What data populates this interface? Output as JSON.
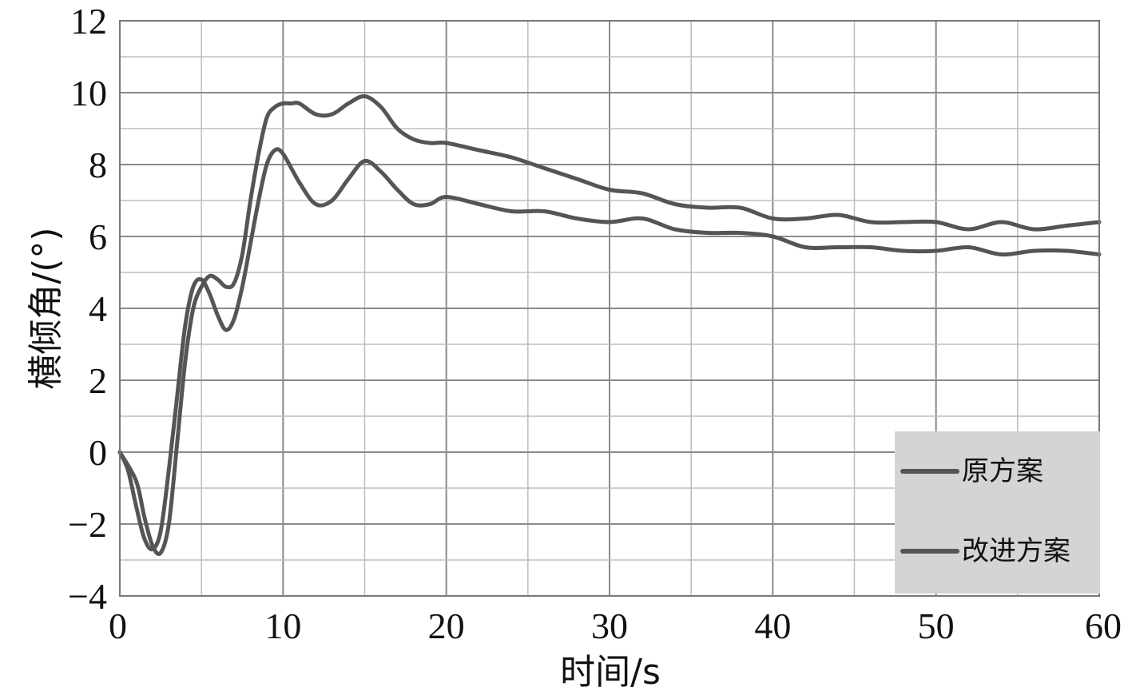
{
  "chart_data": {
    "type": "line",
    "title": "",
    "xlabel": "时间/s",
    "ylabel": "横倾角/(°)",
    "xlim": [
      0,
      60
    ],
    "ylim": [
      -4,
      12
    ],
    "x_ticks": [
      0,
      10,
      20,
      30,
      40,
      50,
      60
    ],
    "y_ticks": [
      -4,
      -2,
      0,
      2,
      4,
      6,
      8,
      10,
      12
    ],
    "y_tick_labels": [
      "−4",
      "−2",
      "0",
      "2",
      "4",
      "6",
      "8",
      "10",
      "12"
    ],
    "grid": true,
    "legend_position": "bottom-right",
    "line_color": "#555555",
    "series": [
      {
        "name": "原方案",
        "x": [
          0,
          1,
          1.5,
          2,
          2.5,
          3,
          3.5,
          4,
          4.5,
          5,
          5.5,
          6,
          6.5,
          7,
          7.5,
          8,
          8.5,
          9,
          9.5,
          10,
          10.5,
          11,
          12,
          13,
          14,
          15,
          16,
          17,
          18,
          19,
          20,
          22,
          24,
          26,
          28,
          30,
          32,
          34,
          36,
          38,
          40,
          42,
          44,
          46,
          48,
          50,
          52,
          54,
          56,
          58,
          60
        ],
        "y": [
          0,
          -0.8,
          -1.8,
          -2.6,
          -2.8,
          -2.0,
          0.2,
          2.5,
          4.0,
          4.6,
          4.9,
          4.8,
          4.6,
          4.7,
          5.5,
          7.0,
          8.3,
          9.3,
          9.6,
          9.7,
          9.7,
          9.7,
          9.4,
          9.4,
          9.7,
          9.9,
          9.6,
          9.0,
          8.7,
          8.6,
          8.6,
          8.4,
          8.2,
          7.9,
          7.6,
          7.3,
          7.2,
          6.9,
          6.8,
          6.8,
          6.5,
          6.5,
          6.6,
          6.4,
          6.4,
          6.4,
          6.2,
          6.4,
          6.2,
          6.3,
          6.4
        ]
      },
      {
        "name": "改进方案",
        "x": [
          0,
          0.5,
          1,
          1.5,
          2,
          2.5,
          3,
          3.5,
          4,
          4.5,
          5,
          5.5,
          6,
          6.5,
          7,
          7.5,
          8,
          8.5,
          9,
          9.5,
          10,
          11,
          12,
          13,
          14,
          15,
          16,
          17,
          18,
          19,
          20,
          22,
          24,
          26,
          28,
          30,
          32,
          34,
          36,
          38,
          40,
          42,
          44,
          46,
          48,
          50,
          52,
          54,
          56,
          58,
          60
        ],
        "y": [
          0,
          -0.5,
          -1.5,
          -2.4,
          -2.7,
          -2.2,
          -0.5,
          1.5,
          3.5,
          4.6,
          4.8,
          4.4,
          3.8,
          3.4,
          3.7,
          4.6,
          5.8,
          7.0,
          8.0,
          8.4,
          8.3,
          7.5,
          6.9,
          7.0,
          7.6,
          8.1,
          7.8,
          7.3,
          6.9,
          6.9,
          7.1,
          6.9,
          6.7,
          6.7,
          6.5,
          6.4,
          6.5,
          6.2,
          6.1,
          6.1,
          6.0,
          5.7,
          5.7,
          5.7,
          5.6,
          5.6,
          5.7,
          5.5,
          5.6,
          5.6,
          5.5
        ]
      }
    ]
  }
}
